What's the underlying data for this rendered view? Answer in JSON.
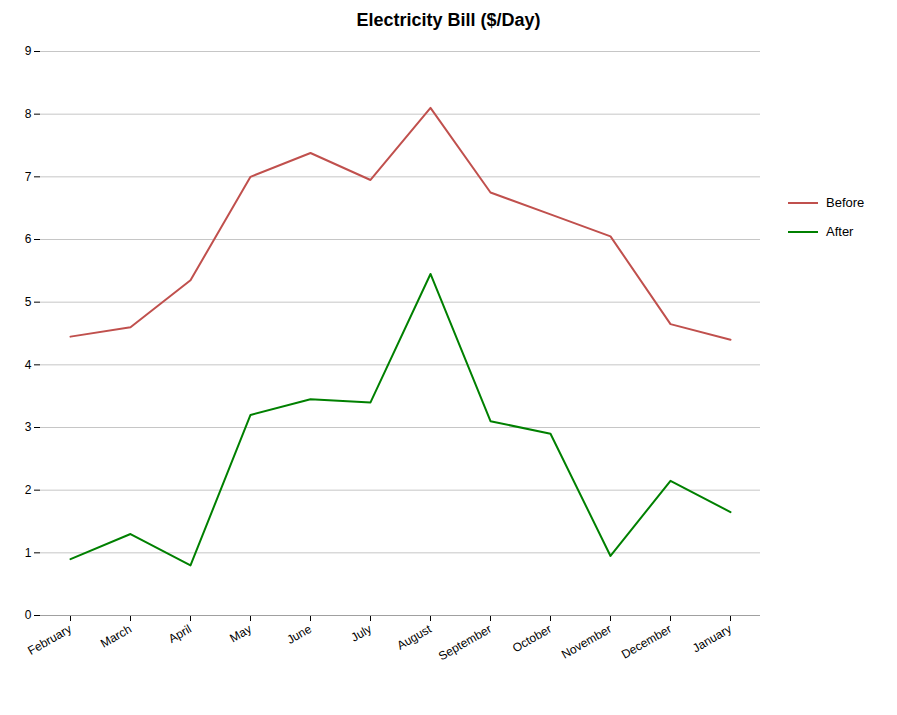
{
  "chart_data": {
    "type": "line",
    "title": "Electricity Bill ($/Day)",
    "categories": [
      "February",
      "March",
      "April",
      "May",
      "June",
      "July",
      "August",
      "September",
      "October",
      "November",
      "December",
      "January"
    ],
    "series": [
      {
        "name": "Before",
        "color": "#C0504D",
        "values": [
          4.45,
          4.6,
          5.35,
          7.0,
          7.38,
          6.95,
          8.1,
          6.75,
          6.4,
          6.05,
          4.65,
          4.4
        ]
      },
      {
        "name": "After",
        "color": "#008000",
        "values": [
          0.9,
          1.3,
          0.8,
          3.2,
          3.45,
          3.4,
          5.45,
          3.1,
          2.9,
          0.95,
          2.15,
          1.65
        ]
      }
    ],
    "ylim": [
      0,
      9
    ],
    "yticks": [
      0,
      1,
      2,
      3,
      4,
      5,
      6,
      7,
      8,
      9
    ],
    "grid": true,
    "legend": "right"
  }
}
